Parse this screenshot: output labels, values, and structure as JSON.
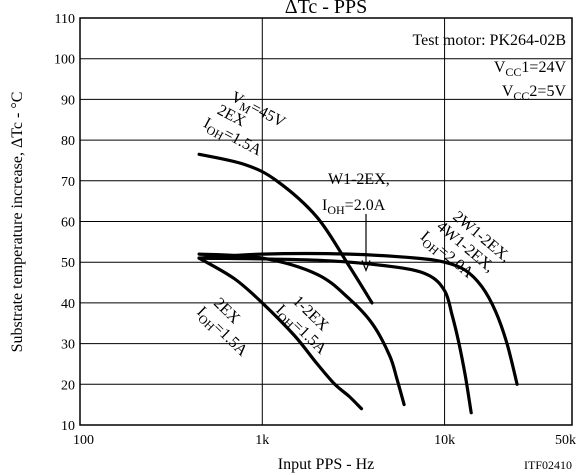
{
  "chart_data": {
    "type": "line",
    "title": "ΔTc - PPS",
    "xlabel": "Input PPS - Hz",
    "ylabel": "Substrate temperature increase, ΔTc - °C",
    "xscale": "log",
    "xlim": [
      100,
      50000
    ],
    "ylim": [
      10,
      110
    ],
    "x_tick_values": [
      100,
      1000,
      10000,
      50000
    ],
    "x_tick_labels": [
      "100",
      "1k",
      "10k",
      "50k"
    ],
    "y_ticks": [
      10,
      20,
      30,
      40,
      50,
      60,
      70,
      80,
      90,
      100,
      110
    ],
    "grid": true,
    "test_conditions": {
      "motor": "Test motor: PK264-02B",
      "vcc1": {
        "prefix": "V",
        "sub": "CC",
        "suffix": "1=24V"
      },
      "vcc2": {
        "prefix": "V",
        "sub": "CC",
        "suffix": "2=5V"
      }
    },
    "figure_code": "ITF02410",
    "series": [
      {
        "x": [
          450,
          700,
          1000,
          1500,
          2000,
          2500,
          3000,
          3500
        ],
        "y": [
          51,
          46,
          40,
          32,
          25,
          20,
          17,
          14
        ]
      },
      {
        "x": [
          450,
          1000,
          2000,
          3000,
          4000,
          5000,
          5500,
          6000
        ],
        "y": [
          52,
          51,
          47,
          41,
          35,
          27,
          21,
          15
        ]
      },
      {
        "x": [
          450,
          800,
          1200,
          2000,
          3000,
          4000
        ],
        "y": [
          76.5,
          74,
          70,
          61,
          49,
          40
        ]
      },
      {
        "x": [
          450,
          2000,
          5000,
          8000,
          10000,
          11000,
          12000,
          13000,
          14000
        ],
        "y": [
          51,
          50.5,
          49,
          47,
          43,
          37,
          30,
          22,
          13
        ]
      },
      {
        "x": [
          450,
          1000,
          3000,
          7000,
          10000,
          13000,
          16000,
          19000,
          22000,
          25000
        ],
        "y": [
          51,
          52,
          52,
          51,
          50,
          48,
          44,
          38,
          30,
          20
        ]
      }
    ],
    "annotations": [
      {
        "label": "vm",
        "lines": [
          {
            "prefix": "V",
            "sub": "M",
            "suffix": "=45V"
          },
          {
            "prefix": "2EX"
          },
          {
            "prefix": "I",
            "sub": "OH",
            "suffix": "=1.5A"
          }
        ]
      },
      {
        "label": "w1-2ex",
        "lines": [
          {
            "prefix": "W1-2EX,"
          },
          {
            "prefix": "I",
            "sub": "OH",
            "suffix": "=2.0A"
          }
        ]
      },
      {
        "label": "2w1-2ex",
        "lines": [
          {
            "prefix": "2W1-2EX,"
          },
          {
            "prefix": "4W1-2EX,"
          },
          {
            "prefix": "I",
            "sub": "OH",
            "suffix": "=2.0A"
          }
        ]
      },
      {
        "label": "2ex",
        "lines": [
          {
            "prefix": "2EX"
          },
          {
            "prefix": "I",
            "sub": "OH",
            "suffix": "=1.5A"
          }
        ]
      },
      {
        "label": "1-2ex",
        "lines": [
          {
            "prefix": "1-2EX"
          },
          {
            "prefix": "I",
            "sub": "OH",
            "suffix": "=1.5A"
          }
        ]
      }
    ]
  }
}
